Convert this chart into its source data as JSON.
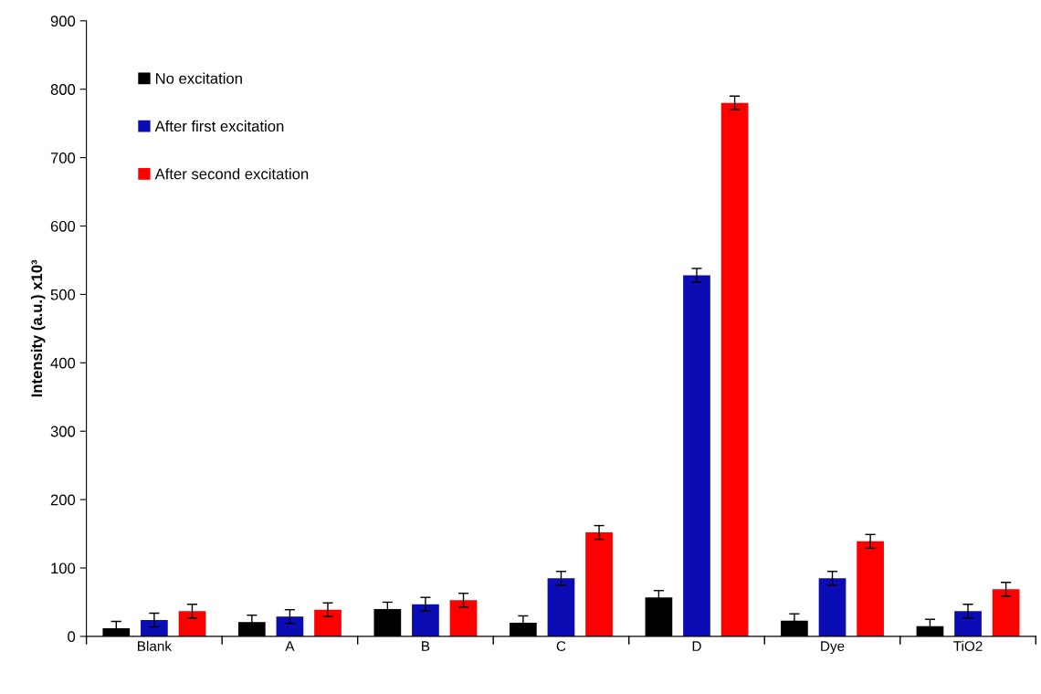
{
  "chart_data": {
    "type": "bar",
    "ylabel": "Intensity (a.u.) x10³",
    "categories": [
      "Blank",
      "A",
      "B",
      "C",
      "D",
      "Dye",
      "TiO2"
    ],
    "series": [
      {
        "name": "No excitation",
        "color": "#000000",
        "values": [
          12,
          21,
          40,
          20,
          57,
          23,
          15
        ],
        "errors": [
          10,
          10,
          10,
          10,
          10,
          10,
          10
        ]
      },
      {
        "name": "After first excitation",
        "color": "#0c0cb4",
        "values": [
          24,
          29,
          47,
          85,
          528,
          85,
          37
        ],
        "errors": [
          10,
          10,
          10,
          10,
          10,
          10,
          10
        ]
      },
      {
        "name": "After second excitation",
        "color": "#ff0000",
        "values": [
          37,
          39,
          53,
          152,
          780,
          139,
          69
        ],
        "errors": [
          10,
          10,
          10,
          10,
          10,
          10,
          10
        ]
      }
    ],
    "ylim": [
      0,
      900
    ],
    "yticks": [
      0,
      100,
      200,
      300,
      400,
      500,
      600,
      700,
      800,
      900
    ],
    "grid": false,
    "legend": "top left"
  }
}
